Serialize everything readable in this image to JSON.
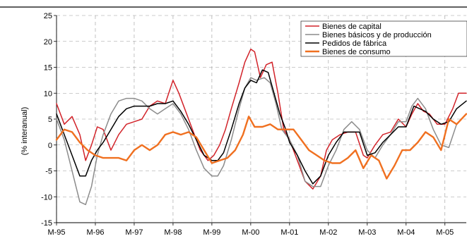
{
  "chart_data": {
    "type": "line",
    "title": "",
    "xlabel": "",
    "ylabel": "(% interanual)",
    "x_ticks": [
      "M-95",
      "M-96",
      "M-97",
      "M-98",
      "M-99",
      "M-00",
      "M-01",
      "M-02",
      "M-03",
      "M-04",
      "M-05"
    ],
    "x_range": [
      1995.0,
      2005.55
    ],
    "ylim": [
      -15,
      25
    ],
    "y_ticks": [
      -15,
      -10,
      -5,
      0,
      5,
      10,
      15,
      20,
      25
    ],
    "grid": true,
    "legend_position": "top-right",
    "series": [
      {
        "name": "Bienes de capital",
        "color": "#d2232a",
        "x": [
          1995.0,
          1995.2,
          1995.4,
          1995.6,
          1995.75,
          1995.9,
          1996.05,
          1996.2,
          1996.4,
          1996.6,
          1996.8,
          1997.0,
          1997.2,
          1997.4,
          1997.6,
          1997.8,
          1998.0,
          1998.15,
          1998.35,
          1998.5,
          1998.7,
          1998.9,
          1999.05,
          1999.2,
          1999.35,
          1999.5,
          1999.7,
          1999.85,
          2000.0,
          2000.1,
          2000.25,
          2000.4,
          2000.55,
          2000.7,
          2000.85,
          2001.0,
          2001.2,
          2001.4,
          2001.6,
          2001.8,
          2001.95,
          2002.1,
          2002.3,
          2002.5,
          2002.7,
          2002.9,
          2003.0,
          2003.2,
          2003.4,
          2003.6,
          2003.8,
          2004.0,
          2004.15,
          2004.3,
          2004.45,
          2004.6,
          2004.8,
          2005.0,
          2005.2,
          2005.35,
          2005.55
        ],
        "y": [
          8,
          4,
          5.5,
          2,
          -3,
          0,
          3.5,
          3,
          -1,
          2,
          4,
          4.5,
          5,
          7.5,
          8.5,
          8,
          12.5,
          10,
          6,
          3,
          -1,
          -3,
          -2,
          0,
          3,
          7,
          12,
          16,
          18.5,
          18,
          13,
          15.5,
          16,
          10,
          3,
          1,
          -3,
          -7,
          -8.5,
          -6,
          -1,
          1,
          2,
          2.5,
          2.5,
          -2,
          -2.5,
          0,
          2,
          2.5,
          5,
          3.5,
          6,
          8,
          6.5,
          6,
          4,
          4,
          7,
          10,
          10
        ]
      },
      {
        "name": "Bienes básicos y de producción",
        "color": "#8c8c8c",
        "x": [
          1995.0,
          1995.2,
          1995.4,
          1995.6,
          1995.75,
          1995.9,
          1996.05,
          1996.2,
          1996.4,
          1996.6,
          1996.8,
          1997.0,
          1997.2,
          1997.4,
          1997.6,
          1997.8,
          1998.0,
          1998.2,
          1998.4,
          1998.6,
          1998.8,
          1999.0,
          1999.15,
          1999.3,
          1999.5,
          1999.7,
          1999.85,
          2000.0,
          2000.15,
          2000.35,
          2000.5,
          2000.65,
          2000.8,
          2001.0,
          2001.2,
          2001.4,
          2001.6,
          2001.8,
          2002.0,
          2002.2,
          2002.4,
          2002.6,
          2002.8,
          2003.0,
          2003.2,
          2003.4,
          2003.6,
          2003.8,
          2004.0,
          2004.15,
          2004.3,
          2004.5,
          2004.7,
          2004.9,
          2005.1,
          2005.3,
          2005.55
        ],
        "y": [
          5,
          1,
          -5,
          -11,
          -11.5,
          -8,
          -2,
          2,
          6,
          8.5,
          9,
          9,
          8.5,
          7,
          6,
          7,
          8,
          6,
          3,
          -1,
          -4.5,
          -6,
          -6,
          -4,
          1,
          7,
          11,
          13,
          12.5,
          13,
          12,
          8,
          3,
          1,
          -2,
          -7,
          -8,
          -8,
          -4,
          -1,
          3,
          4.5,
          3,
          -1,
          -2.5,
          0,
          2,
          4.5,
          4.5,
          7.5,
          9,
          7,
          3,
          0,
          -0.5,
          4,
          6
        ]
      },
      {
        "name": "Pedidos de fábrica",
        "color": "#000000",
        "x": [
          1995.0,
          1995.2,
          1995.4,
          1995.6,
          1995.75,
          1995.9,
          1996.05,
          1996.2,
          1996.4,
          1996.6,
          1996.8,
          1997.0,
          1997.2,
          1997.4,
          1997.6,
          1997.8,
          1998.0,
          1998.2,
          1998.4,
          1998.6,
          1998.8,
          1999.0,
          1999.15,
          1999.3,
          1999.5,
          1999.7,
          1999.85,
          2000.0,
          2000.15,
          2000.3,
          2000.45,
          2000.6,
          2000.75,
          2000.9,
          2001.0,
          2001.2,
          2001.4,
          2001.6,
          2001.8,
          2002.0,
          2002.2,
          2002.4,
          2002.6,
          2002.8,
          2003.0,
          2003.2,
          2003.4,
          2003.6,
          2003.8,
          2004.0,
          2004.2,
          2004.35,
          2004.5,
          2004.7,
          2004.9,
          2005.1,
          2005.3,
          2005.55
        ],
        "y": [
          6,
          2,
          -2,
          -6,
          -6,
          -3,
          -1,
          0.5,
          3,
          5.5,
          7,
          7.5,
          7.5,
          7.5,
          8,
          8,
          8.5,
          6.5,
          4,
          1,
          -2,
          -3,
          -3,
          -1.5,
          3,
          8,
          11,
          12.5,
          12,
          14.5,
          14,
          10,
          6,
          3,
          0.5,
          -2,
          -5,
          -7.5,
          -6,
          -2,
          0.5,
          2.5,
          2.5,
          2.5,
          -2,
          -1.5,
          0.5,
          2,
          3.5,
          3.5,
          7.5,
          7,
          6.5,
          5,
          4,
          4.5,
          7,
          8.5
        ]
      },
      {
        "name": "Bienes de consumo",
        "color": "#f07020",
        "x": [
          1995.0,
          1995.2,
          1995.4,
          1995.6,
          1995.8,
          1996.0,
          1996.2,
          1996.4,
          1996.6,
          1996.8,
          1997.0,
          1997.2,
          1997.4,
          1997.6,
          1997.8,
          1998.0,
          1998.2,
          1998.4,
          1998.6,
          1998.8,
          1999.0,
          1999.2,
          1999.4,
          1999.6,
          1999.8,
          1999.95,
          2000.1,
          2000.3,
          2000.5,
          2000.7,
          2000.9,
          2001.1,
          2001.3,
          2001.5,
          2001.7,
          2001.9,
          2002.1,
          2002.3,
          2002.5,
          2002.7,
          2002.9,
          2003.1,
          2003.3,
          2003.5,
          2003.7,
          2003.9,
          2004.1,
          2004.3,
          2004.5,
          2004.7,
          2004.9,
          2005.1,
          2005.3,
          2005.55
        ],
        "y": [
          1,
          3,
          2.5,
          0.5,
          -1,
          -2,
          -2.5,
          -2.5,
          -2.5,
          -3,
          -1,
          0,
          -1,
          0,
          2,
          2.5,
          2,
          2.5,
          1.5,
          -1,
          -3.5,
          -3,
          -2.5,
          -1,
          2,
          5.5,
          3.5,
          3.5,
          4,
          3,
          3,
          3,
          1,
          -1,
          -2,
          -3,
          -3.5,
          -3.5,
          -2.5,
          -1,
          -4.5,
          -2,
          -3,
          -6.5,
          -4,
          -1,
          -1,
          0.5,
          2.5,
          1.5,
          -1,
          5,
          4,
          6
        ]
      }
    ]
  }
}
